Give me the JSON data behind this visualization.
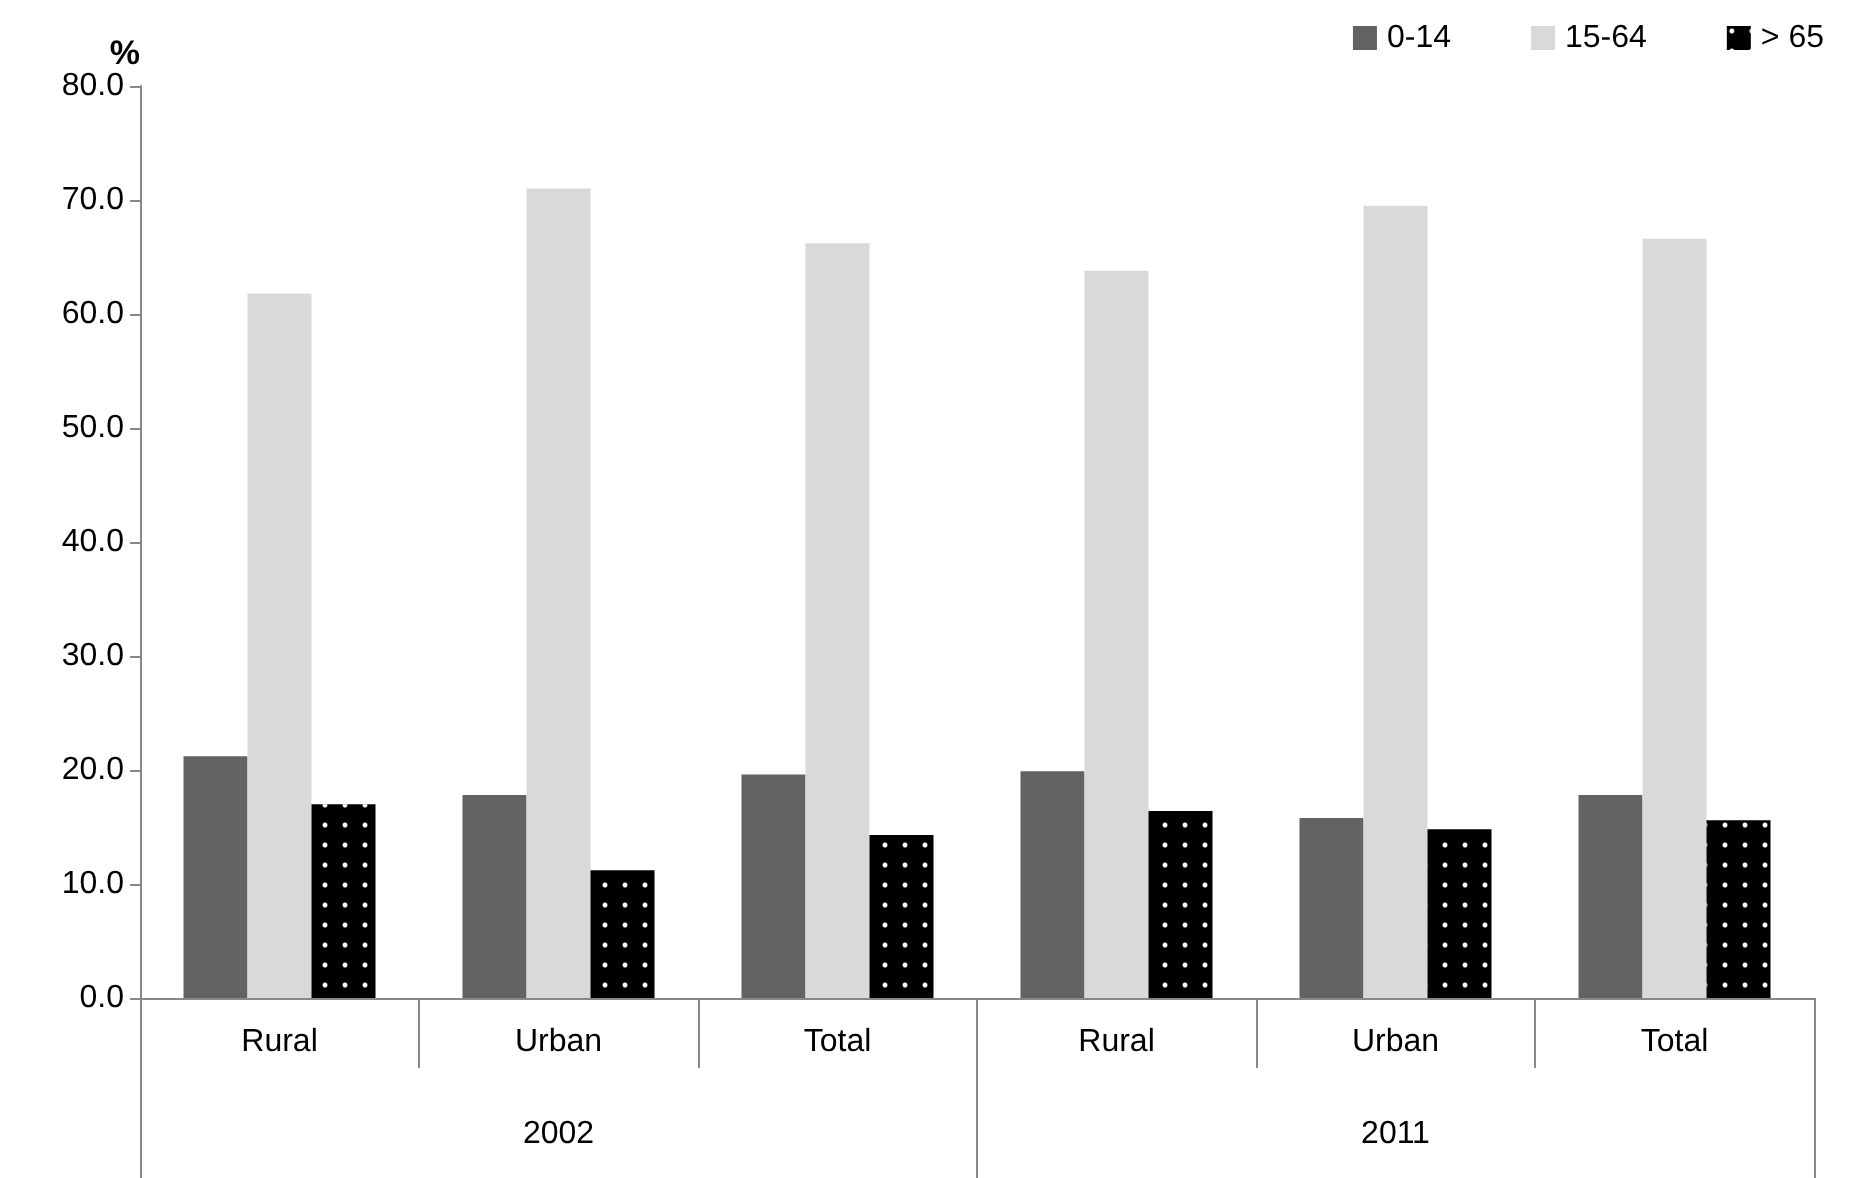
{
  "chart_data": {
    "type": "bar",
    "ylabel": "%",
    "categories": [
      "Rural",
      "Urban",
      "Total",
      "Rural",
      "Urban",
      "Total"
    ],
    "annotations": [
      "2002",
      "2011"
    ],
    "series": [
      {
        "name": "0-14",
        "color": "#636363",
        "values": [
          21.2,
          17.8,
          19.6,
          19.9,
          15.8,
          17.8
        ]
      },
      {
        "name": "15-64",
        "color": "#d9d9d9",
        "values": [
          61.8,
          71.0,
          66.2,
          63.8,
          69.5,
          66.6
        ]
      },
      {
        "name": "> 65",
        "color": "#000000",
        "values": [
          17.0,
          11.2,
          14.3,
          16.4,
          14.8,
          15.6
        ]
      }
    ],
    "ylim": [
      0,
      80
    ],
    "yticks": [
      {
        "value": 0,
        "label": "0.0"
      },
      {
        "value": 10,
        "label": "10.0"
      },
      {
        "value": 20,
        "label": "20.0"
      },
      {
        "value": 30,
        "label": "30.0"
      },
      {
        "value": 40,
        "label": "40.0"
      },
      {
        "value": 50,
        "label": "50.0"
      },
      {
        "value": 60,
        "label": "60.0"
      },
      {
        "value": 70,
        "label": "70.0"
      },
      {
        "value": 80,
        "label": "80.0"
      }
    ],
    "grid": false,
    "legend": "top right"
  }
}
